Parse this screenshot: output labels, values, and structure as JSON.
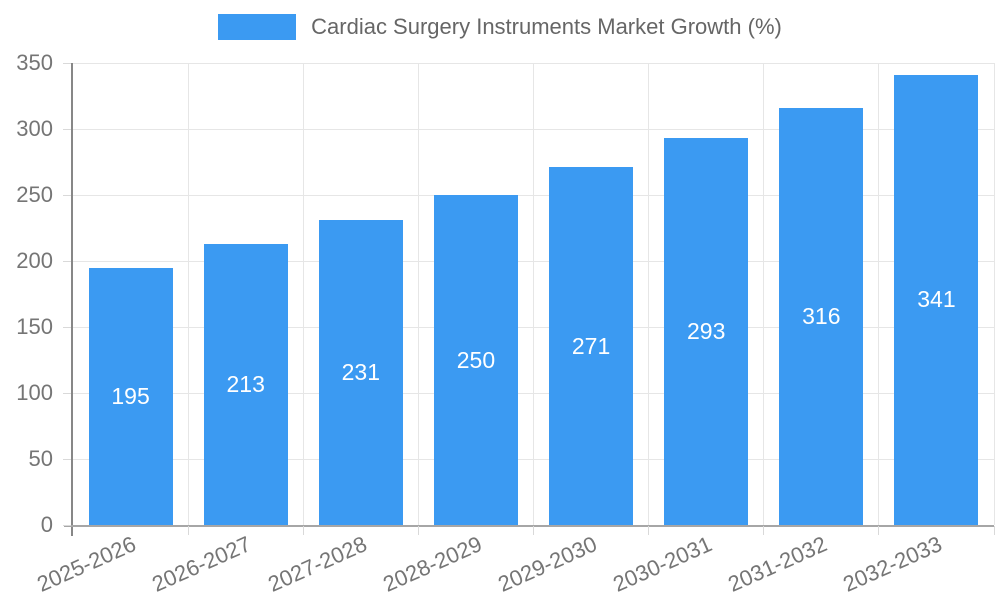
{
  "chart_data": {
    "type": "bar",
    "title": "Cardiac Surgery Instruments Market Growth (%)",
    "categories": [
      "2025-2026",
      "2026-2027",
      "2027-2028",
      "2028-2029",
      "2029-2030",
      "2030-2031",
      "2031-2032",
      "2032-2033"
    ],
    "values": [
      195,
      213,
      231,
      250,
      271,
      293,
      316,
      341
    ],
    "xlabel": "",
    "ylabel": "",
    "ylim": [
      0,
      350
    ],
    "yticks": [
      0,
      50,
      100,
      150,
      200,
      250,
      300,
      350
    ],
    "grid": true,
    "legend_position": "top",
    "bar_color": "#3b9af2",
    "value_label_color": "#ffffff",
    "axis_text_color": "#757575",
    "legend_text_color": "#666666",
    "gridline_color": "#e6e6e6",
    "x_label_rotation_deg": -24
  }
}
